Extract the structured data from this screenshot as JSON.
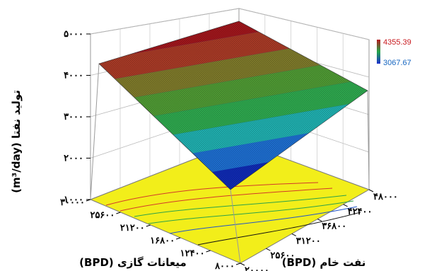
{
  "chart_data": {
    "type": "surface3d",
    "z_axis": {
      "label": "تولید نفتا (m³/day)",
      "ticks": [
        1000,
        2000,
        3000,
        4000,
        5000
      ],
      "tick_labels": [
        "۱۰۰۰",
        "۲۰۰۰",
        "۳۰۰۰",
        "۴۰۰۰",
        "۵۰۰۰"
      ],
      "range": [
        1000,
        5000
      ]
    },
    "x_axis": {
      "label": "میعانات گازی (BPD)",
      "ticks": [
        8000,
        12400,
        16800,
        21200,
        25600,
        30000
      ],
      "tick_labels": [
        "۸۰۰۰",
        "۱۲۴۰۰",
        "۱۶۸۰۰",
        "۲۱۲۰۰",
        "۲۵۶۰۰",
        "۳۰۰۰۰"
      ],
      "range": [
        8000,
        30000
      ]
    },
    "y_axis": {
      "label": "نفت خام (BPD)",
      "ticks": [
        20000,
        25600,
        31200,
        36800,
        42400,
        48000
      ],
      "tick_labels": [
        "۲۰۰۰۰",
        "۲۵۶۰۰",
        "۳۱۲۰۰",
        "۳۶۸۰۰",
        "۴۲۴۰۰",
        "۴۸۰۰۰"
      ],
      "range": [
        20000,
        48000
      ]
    },
    "surface_corners": [
      {
        "x": 8000,
        "y": 20000,
        "z": 1200
      },
      {
        "x": 30000,
        "y": 20000,
        "z": 4150
      },
      {
        "x": 30000,
        "y": 48000,
        "z": 4400
      },
      {
        "x": 8000,
        "y": 48000,
        "z": 2600
      }
    ],
    "color_scale": {
      "max_label": "4355.39",
      "min_label": "3067.67",
      "max_color": "#c8191e",
      "min_color": "#1565c0",
      "stops": [
        "#0f2ab4",
        "#0f2ab4",
        "#1e6ed0",
        "#20b0b0",
        "#2ea84e",
        "#4f9a34",
        "#7e7a2a",
        "#a83a26",
        "#a0161c"
      ]
    },
    "contour_plane_color": "#f2ee1a",
    "grid": true
  }
}
